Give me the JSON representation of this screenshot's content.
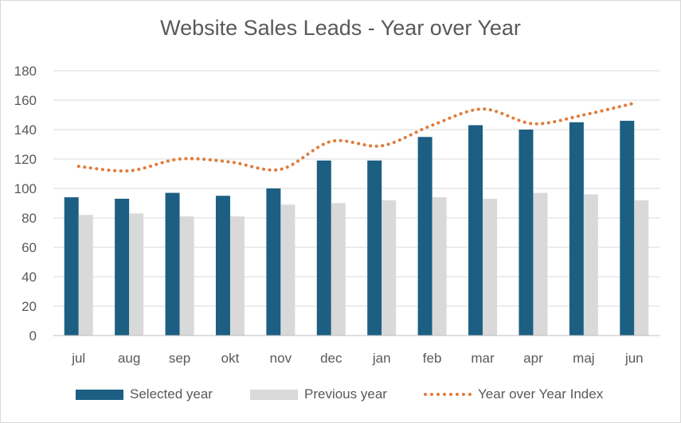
{
  "chart_data": {
    "type": "bar",
    "title": "Website Sales Leads - Year over Year",
    "categories": [
      "jul",
      "aug",
      "sep",
      "okt",
      "nov",
      "dec",
      "jan",
      "feb",
      "mar",
      "apr",
      "maj",
      "jun"
    ],
    "series": [
      {
        "name": "Selected year",
        "kind": "bar",
        "color": "#1c5f82",
        "values": [
          94,
          93,
          97,
          95,
          100,
          119,
          119,
          135,
          143,
          140,
          145,
          146
        ]
      },
      {
        "name": "Previous year",
        "kind": "bar",
        "color": "#d9d9d9",
        "values": [
          82,
          83,
          81,
          81,
          89,
          90,
          92,
          94,
          93,
          97,
          96,
          92
        ]
      },
      {
        "name": "Year over Year Index",
        "kind": "line",
        "style": "dotted",
        "color": "#e07b39",
        "values": [
          115,
          112,
          120,
          118,
          113,
          132,
          129,
          143,
          154,
          144,
          150,
          158
        ]
      }
    ],
    "ylim": [
      0,
      180
    ],
    "yticks": [
      "0",
      "20",
      "40",
      "60",
      "80",
      "100",
      "120",
      "140",
      "160",
      "180"
    ],
    "grid": true,
    "legend_position": "bottom"
  }
}
